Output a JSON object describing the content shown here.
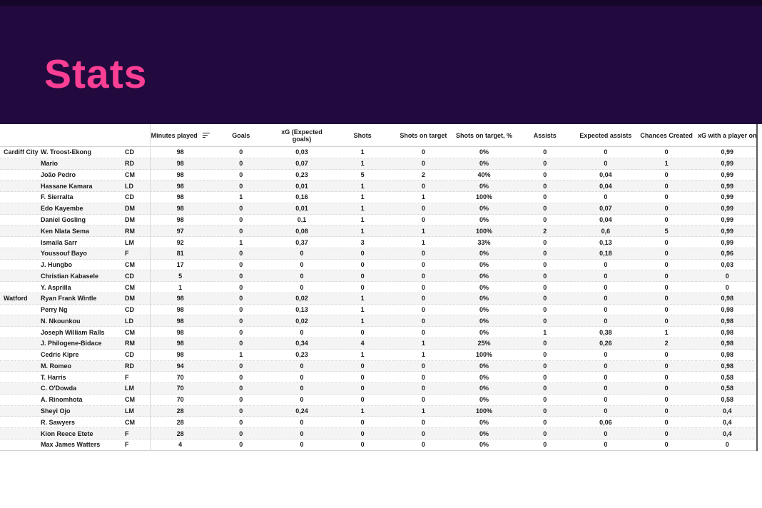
{
  "header": {
    "title": "Stats"
  },
  "theme": {
    "banner_bg": "#230a3e",
    "banner_top": "#15062a",
    "accent_pink": "#fa3f94",
    "row_alt": "#f4f4f4"
  },
  "table": {
    "columns": [
      "Minutes played",
      "Goals",
      "xG (Expected goals)",
      "Shots",
      "Shots on target",
      "Shots on target, %",
      "Assists",
      "Expected assists",
      "Chances Created",
      "xG with a player on"
    ],
    "sorted_column": "Minutes played",
    "groups": [
      {
        "team": "Cardiff City",
        "players": [
          {
            "name": "W. Troost-Ekong",
            "pos": "CD",
            "values": [
              "98",
              "0",
              "0,03",
              "1",
              "0",
              "0%",
              "0",
              "0",
              "0",
              "0,99"
            ]
          },
          {
            "name": "Mario",
            "pos": "RD",
            "values": [
              "98",
              "0",
              "0,07",
              "1",
              "0",
              "0%",
              "0",
              "0",
              "1",
              "0,99"
            ]
          },
          {
            "name": "João Pedro",
            "pos": "CM",
            "values": [
              "98",
              "0",
              "0,23",
              "5",
              "2",
              "40%",
              "0",
              "0,04",
              "0",
              "0,99"
            ]
          },
          {
            "name": "Hassane Kamara",
            "pos": "LD",
            "values": [
              "98",
              "0",
              "0,01",
              "1",
              "0",
              "0%",
              "0",
              "0,04",
              "0",
              "0,99"
            ]
          },
          {
            "name": "F. Sierralta",
            "pos": "CD",
            "values": [
              "98",
              "1",
              "0,16",
              "1",
              "1",
              "100%",
              "0",
              "0",
              "0",
              "0,99"
            ]
          },
          {
            "name": "Edo Kayembe",
            "pos": "DM",
            "values": [
              "98",
              "0",
              "0,01",
              "1",
              "0",
              "0%",
              "0",
              "0,07",
              "0",
              "0,99"
            ]
          },
          {
            "name": "Daniel Gosling",
            "pos": "DM",
            "values": [
              "98",
              "0",
              "0,1",
              "1",
              "0",
              "0%",
              "0",
              "0,04",
              "0",
              "0,99"
            ]
          },
          {
            "name": "Ken Nlata Sema",
            "pos": "RM",
            "values": [
              "97",
              "0",
              "0,08",
              "1",
              "1",
              "100%",
              "2",
              "0,6",
              "5",
              "0,99"
            ]
          },
          {
            "name": "Ismaila Sarr",
            "pos": "LM",
            "values": [
              "92",
              "1",
              "0,37",
              "3",
              "1",
              "33%",
              "0",
              "0,13",
              "0",
              "0,99"
            ]
          },
          {
            "name": "Youssouf Bayo",
            "pos": "F",
            "values": [
              "81",
              "0",
              "0",
              "0",
              "0",
              "0%",
              "0",
              "0,18",
              "0",
              "0,96"
            ]
          },
          {
            "name": "J. Hungbo",
            "pos": "CM",
            "values": [
              "17",
              "0",
              "0",
              "0",
              "0",
              "0%",
              "0",
              "0",
              "0",
              "0,03"
            ]
          },
          {
            "name": "Christian Kabasele",
            "pos": "CD",
            "values": [
              "5",
              "0",
              "0",
              "0",
              "0",
              "0%",
              "0",
              "0",
              "0",
              "0"
            ]
          },
          {
            "name": "Y. Asprilla",
            "pos": "CM",
            "values": [
              "1",
              "0",
              "0",
              "0",
              "0",
              "0%",
              "0",
              "0",
              "0",
              "0"
            ]
          }
        ]
      },
      {
        "team": "Watford",
        "players": [
          {
            "name": "Ryan Frank Wintle",
            "pos": "DM",
            "values": [
              "98",
              "0",
              "0,02",
              "1",
              "0",
              "0%",
              "0",
              "0",
              "0",
              "0,98"
            ]
          },
          {
            "name": "Perry Ng",
            "pos": "CD",
            "values": [
              "98",
              "0",
              "0,13",
              "1",
              "0",
              "0%",
              "0",
              "0",
              "0",
              "0,98"
            ]
          },
          {
            "name": "N. Nkounkou",
            "pos": "LD",
            "values": [
              "98",
              "0",
              "0,02",
              "1",
              "0",
              "0%",
              "0",
              "0",
              "0",
              "0,98"
            ]
          },
          {
            "name": "Joseph William Ralls",
            "pos": "CM",
            "values": [
              "98",
              "0",
              "0",
              "0",
              "0",
              "0%",
              "1",
              "0,38",
              "1",
              "0,98"
            ]
          },
          {
            "name": "J. Philogene-Bidace",
            "pos": "RM",
            "values": [
              "98",
              "0",
              "0,34",
              "4",
              "1",
              "25%",
              "0",
              "0,26",
              "2",
              "0,98"
            ]
          },
          {
            "name": "Cedric Kipre",
            "pos": "CD",
            "values": [
              "98",
              "1",
              "0,23",
              "1",
              "1",
              "100%",
              "0",
              "0",
              "0",
              "0,98"
            ]
          },
          {
            "name": "M. Romeo",
            "pos": "RD",
            "values": [
              "94",
              "0",
              "0",
              "0",
              "0",
              "0%",
              "0",
              "0",
              "0",
              "0,98"
            ]
          },
          {
            "name": "T. Harris",
            "pos": "F",
            "values": [
              "70",
              "0",
              "0",
              "0",
              "0",
              "0%",
              "0",
              "0",
              "0",
              "0,58"
            ]
          },
          {
            "name": "C. O'Dowda",
            "pos": "LM",
            "values": [
              "70",
              "0",
              "0",
              "0",
              "0",
              "0%",
              "0",
              "0",
              "0",
              "0,58"
            ]
          },
          {
            "name": "A. Rinomhota",
            "pos": "CM",
            "values": [
              "70",
              "0",
              "0",
              "0",
              "0",
              "0%",
              "0",
              "0",
              "0",
              "0,58"
            ]
          },
          {
            "name": "Sheyi Ojo",
            "pos": "LM",
            "values": [
              "28",
              "0",
              "0,24",
              "1",
              "1",
              "100%",
              "0",
              "0",
              "0",
              "0,4"
            ]
          },
          {
            "name": "R. Sawyers",
            "pos": "CM",
            "values": [
              "28",
              "0",
              "0",
              "0",
              "0",
              "0%",
              "0",
              "0,06",
              "0",
              "0,4"
            ]
          },
          {
            "name": "Kion Reece Etete",
            "pos": "F",
            "values": [
              "28",
              "0",
              "0",
              "0",
              "0",
              "0%",
              "0",
              "0",
              "0",
              "0,4"
            ]
          },
          {
            "name": "Max James Watters",
            "pos": "F",
            "values": [
              "4",
              "0",
              "0",
              "0",
              "0",
              "0%",
              "0",
              "0",
              "0",
              "0"
            ]
          }
        ]
      }
    ]
  }
}
